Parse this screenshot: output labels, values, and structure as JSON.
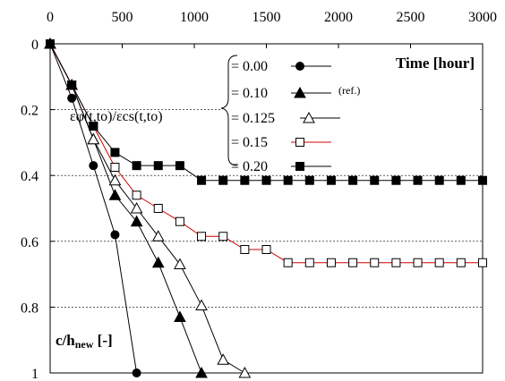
{
  "chart_data": {
    "type": "line",
    "x_axis": {
      "label": "Time [hour]",
      "position": "top",
      "range": [
        0,
        3000
      ],
      "ticks": [
        0,
        500,
        1000,
        1500,
        2000,
        2500,
        3000
      ],
      "tick_labels": [
        "0",
        "500",
        "1000",
        "1500",
        "2000",
        "2500",
        "3000"
      ]
    },
    "y_axis": {
      "label_main": "c/h",
      "label_sub": "new",
      "label_unit": " [-]",
      "range": [
        0,
        1
      ],
      "inverted": true,
      "ticks": [
        0,
        0.2,
        0.4,
        0.6,
        0.8,
        1
      ],
      "tick_labels": [
        "0",
        "0.2",
        "0.4",
        "0.6",
        "0.8",
        "1"
      ]
    },
    "grid": {
      "horizontal_dashed": [
        0.2,
        0.4,
        0.6,
        0.8
      ]
    },
    "legend": {
      "placement": "top-right",
      "ratio_label": "εφ(t,to)/εcs(t,to)",
      "ref_note": "(ref.)"
    },
    "series": [
      {
        "name": "= 0.00",
        "marker": "filled-circle",
        "line_color": "#000000",
        "x": [
          0,
          150,
          300,
          450,
          600
        ],
        "y": [
          0,
          0.165,
          0.37,
          0.58,
          1.0
        ]
      },
      {
        "name": "= 0.10",
        "marker": "filled-triangle",
        "line_color": "#000000",
        "x": [
          0,
          150,
          300,
          450,
          600,
          750,
          900,
          1050
        ],
        "y": [
          0,
          0.125,
          0.29,
          0.46,
          0.54,
          0.665,
          0.83,
          1.0
        ]
      },
      {
        "name": "= 0.125",
        "marker": "open-triangle",
        "line_color": "#000000",
        "x": [
          0,
          150,
          300,
          450,
          600,
          750,
          900,
          1050,
          1200,
          1350
        ],
        "y": [
          0,
          0.125,
          0.29,
          0.415,
          0.5,
          0.585,
          0.67,
          0.795,
          0.96,
          1.0
        ]
      },
      {
        "name": "= 0.15",
        "marker": "open-square",
        "line_color": "#d00000",
        "x": [
          0,
          150,
          300,
          450,
          600,
          750,
          900,
          1050,
          1200,
          1350,
          1500,
          1650,
          1800,
          1950,
          2100,
          2250,
          2400,
          2550,
          2700,
          2850,
          3000
        ],
        "y": [
          0,
          0.125,
          0.25,
          0.375,
          0.46,
          0.5,
          0.54,
          0.585,
          0.585,
          0.625,
          0.625,
          0.665,
          0.665,
          0.665,
          0.665,
          0.665,
          0.665,
          0.665,
          0.665,
          0.665,
          0.665
        ]
      },
      {
        "name": "= 0.20",
        "marker": "filled-square",
        "line_color": "#000000",
        "x": [
          0,
          150,
          300,
          450,
          600,
          750,
          900,
          1050,
          1200,
          1350,
          1500,
          1650,
          1800,
          1950,
          2100,
          2250,
          2400,
          2550,
          2700,
          2850,
          3000
        ],
        "y": [
          0,
          0.125,
          0.25,
          0.33,
          0.37,
          0.37,
          0.37,
          0.415,
          0.415,
          0.415,
          0.415,
          0.415,
          0.415,
          0.415,
          0.415,
          0.415,
          0.415,
          0.415,
          0.415,
          0.415,
          0.415
        ]
      }
    ]
  }
}
